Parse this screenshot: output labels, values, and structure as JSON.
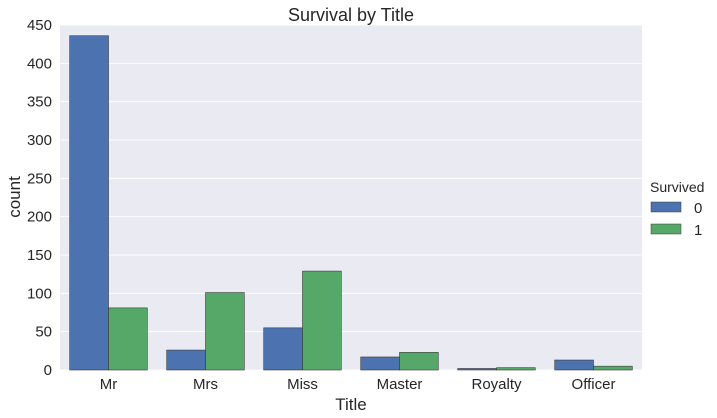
{
  "chart_data": {
    "type": "bar",
    "title": "Survival by Title",
    "xlabel": "Title",
    "ylabel": "count",
    "categories": [
      "Mr",
      "Mrs",
      "Miss",
      "Master",
      "Royalty",
      "Officer"
    ],
    "series": [
      {
        "name": "0",
        "values": [
          436,
          26,
          55,
          17,
          2,
          13
        ]
      },
      {
        "name": "1",
        "values": [
          81,
          101,
          129,
          23,
          3,
          5
        ]
      }
    ],
    "ylim": [
      0,
      450
    ],
    "yticks": [
      0,
      50,
      100,
      150,
      200,
      250,
      300,
      350,
      400,
      450
    ],
    "grid": true,
    "legend": {
      "title": "Survived",
      "placement": "right"
    },
    "colors": {
      "series": [
        "#4c72b0",
        "#55a868"
      ],
      "plot_background": "#eaeaf2",
      "grid": "#ffffff",
      "bar_edge": "#3a3a3a"
    }
  }
}
